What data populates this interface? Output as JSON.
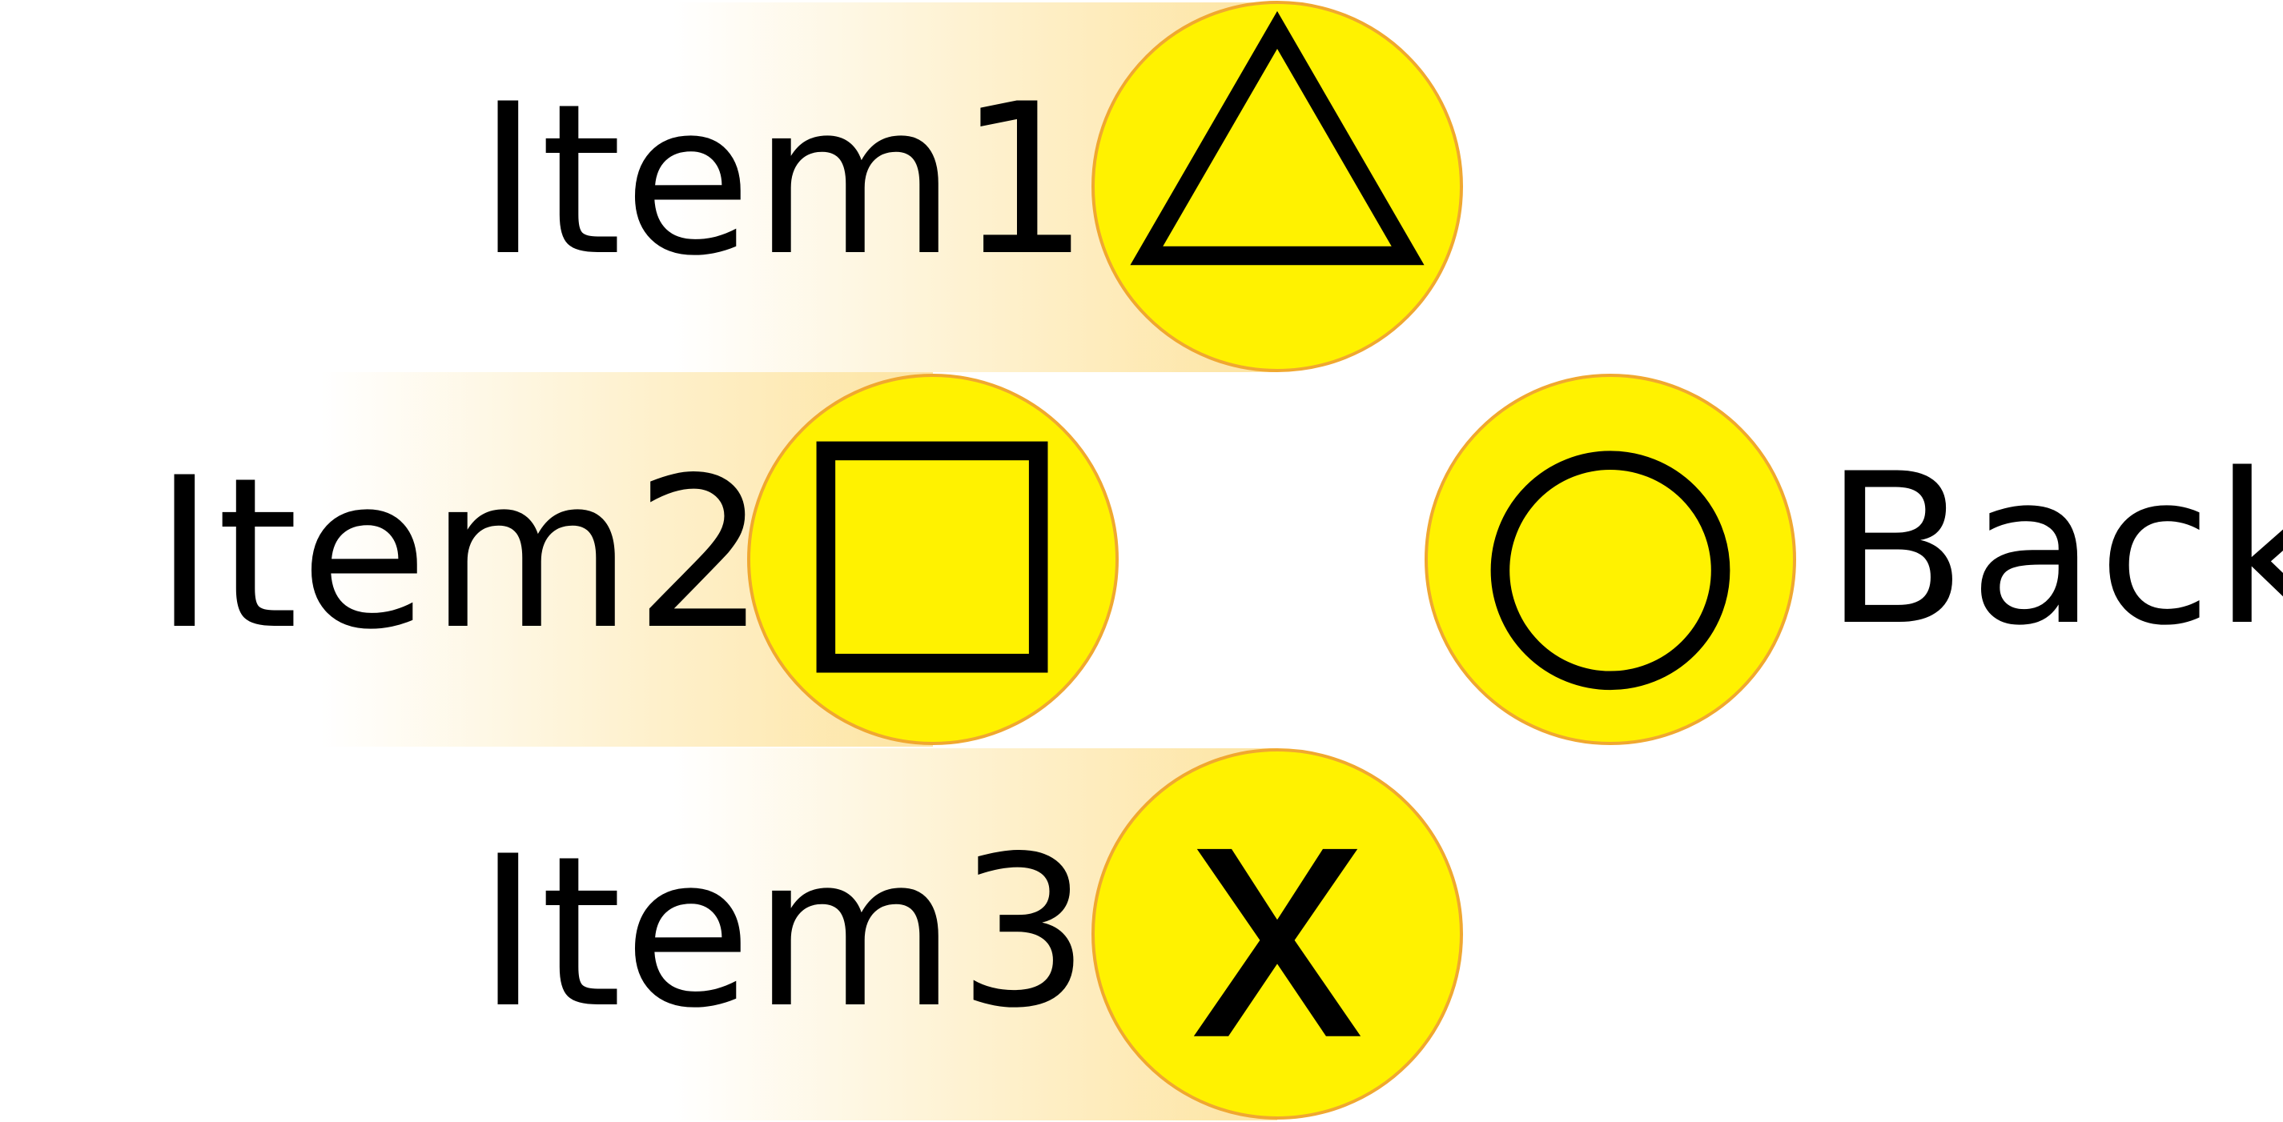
{
  "menu": {
    "items": [
      {
        "label": "Item1",
        "icon": "triangle-icon"
      },
      {
        "label": "Item2",
        "icon": "square-icon"
      },
      {
        "label": "Item3",
        "icon": "cross-icon"
      }
    ],
    "back": {
      "label": "Back",
      "icon": "circle-icon"
    }
  },
  "colors": {
    "button_fill": "#fff200",
    "button_border": "#f0a830",
    "highlight_band": "#fde4a1",
    "glyph": "#000000",
    "text": "#000000"
  }
}
